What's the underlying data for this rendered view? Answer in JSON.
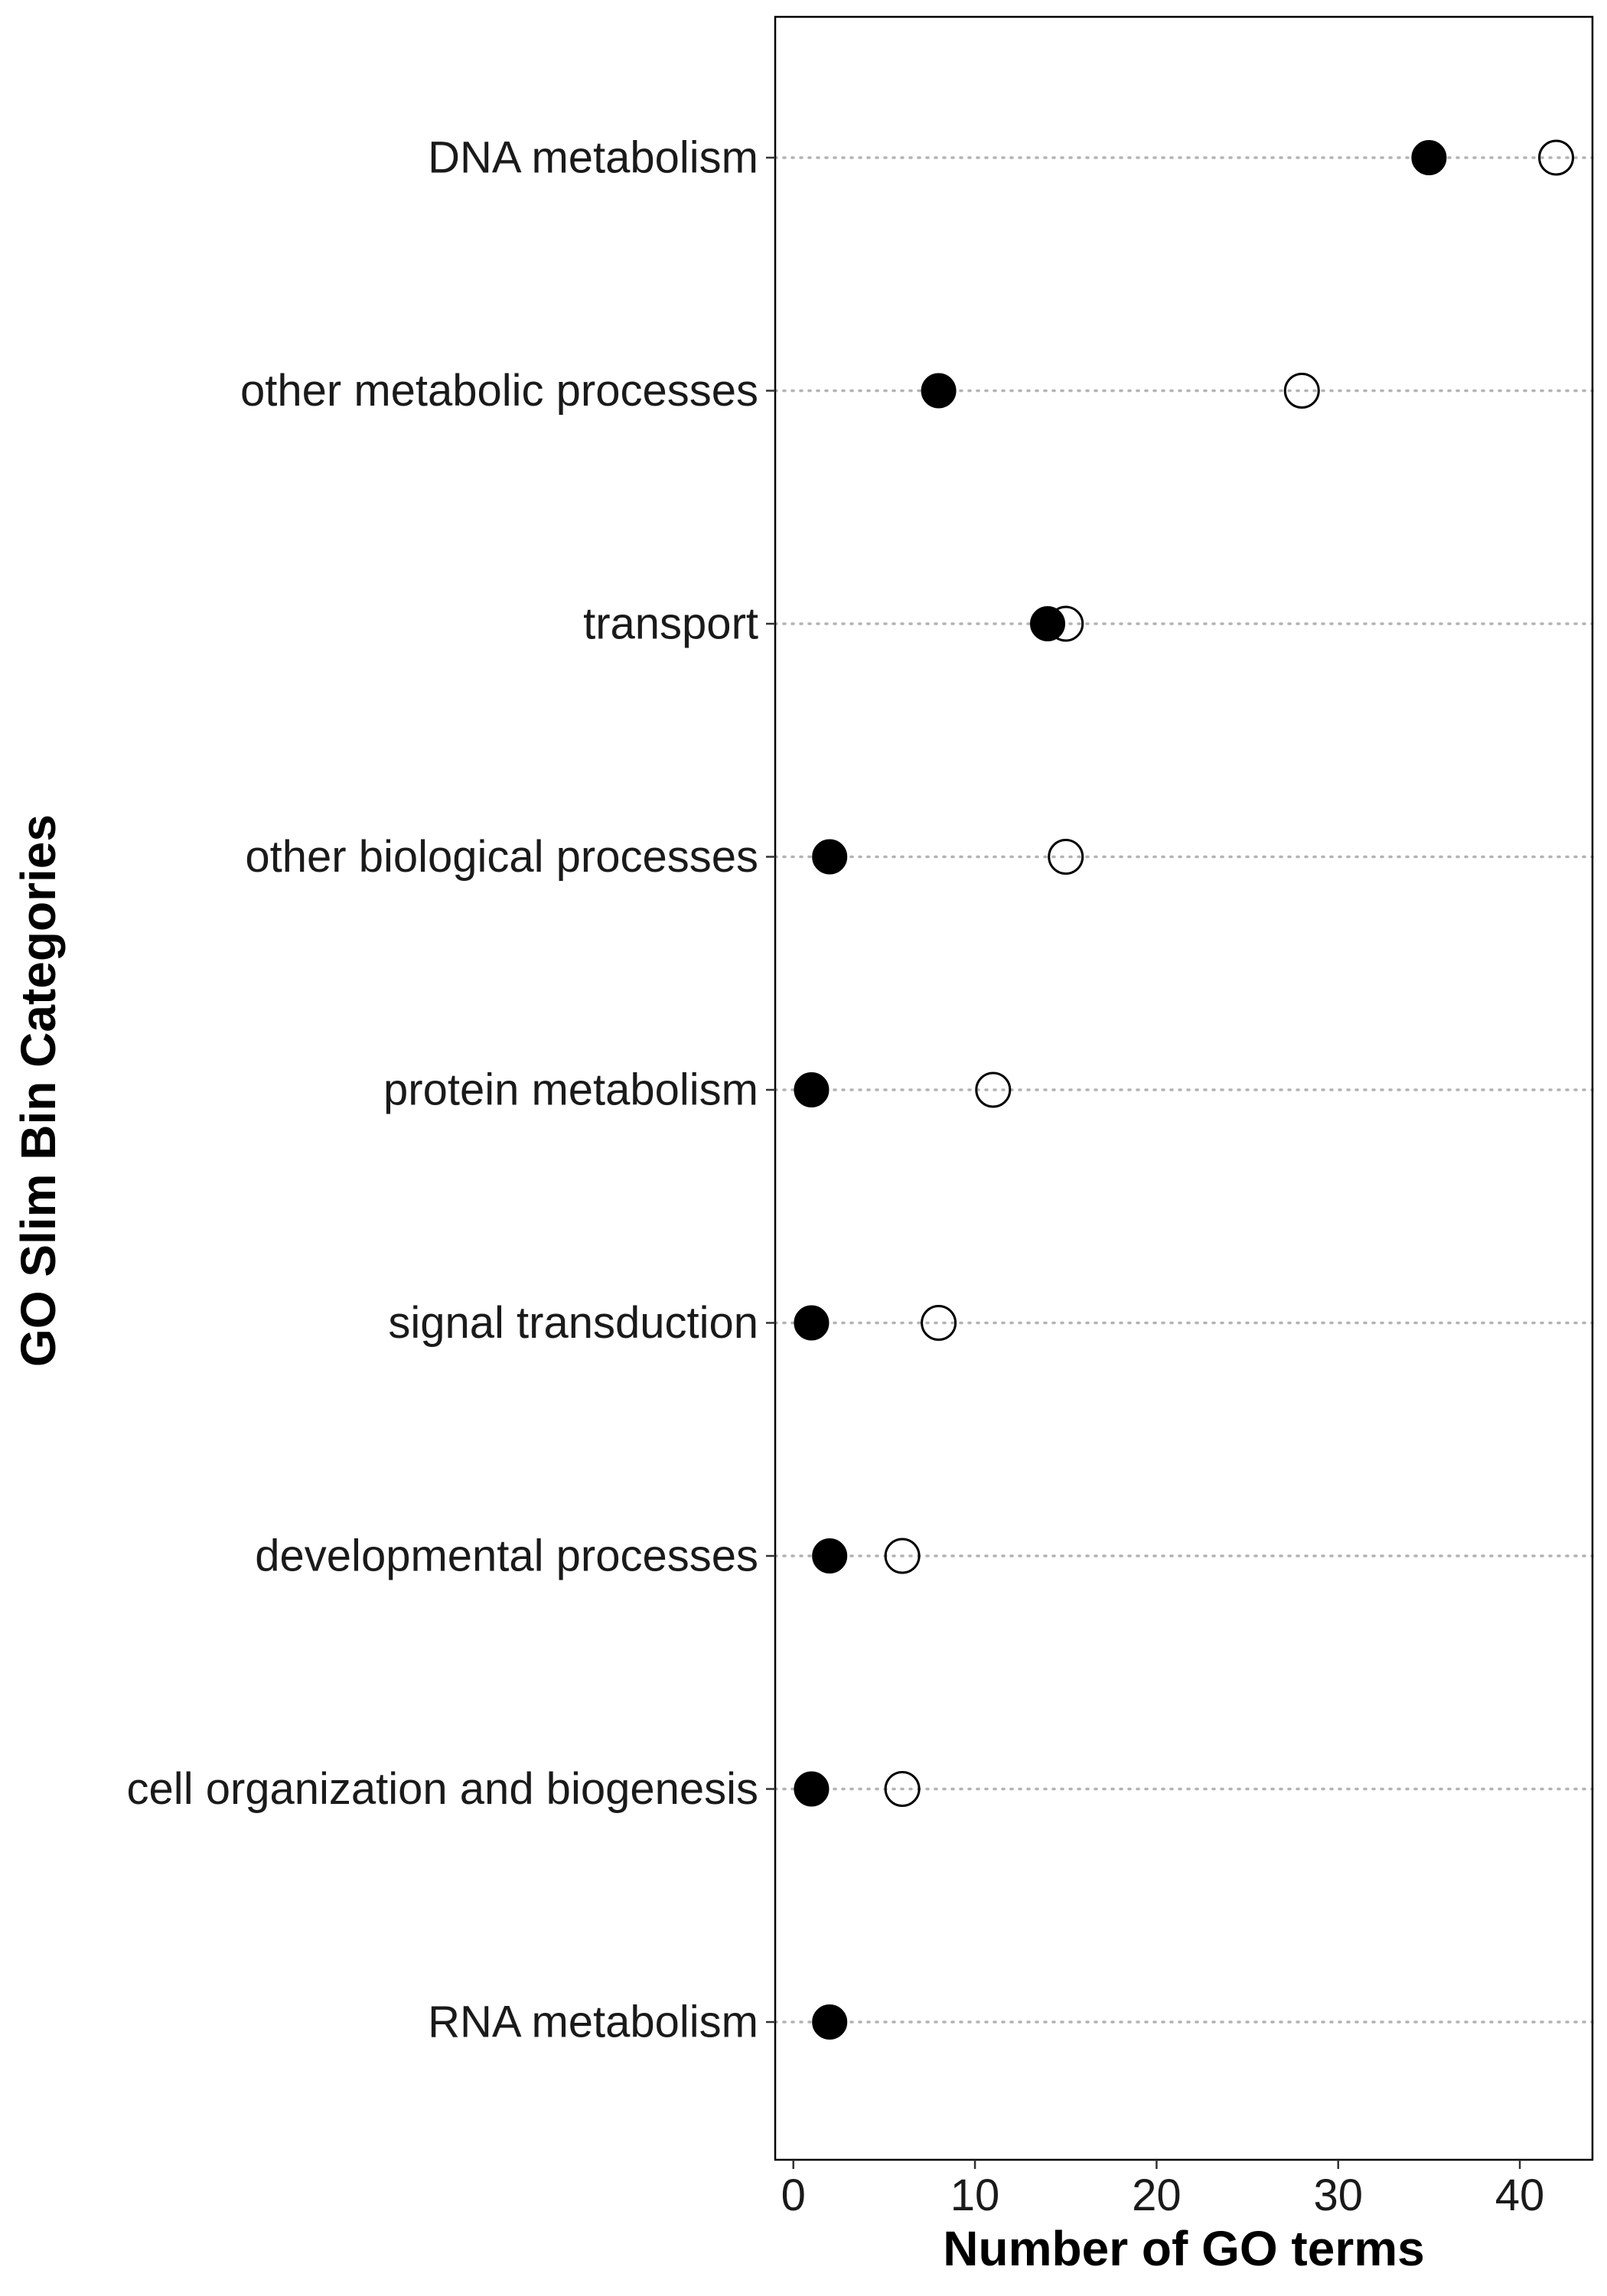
{
  "chart_data": {
    "type": "scatter",
    "xlabel": "Number of GO terms",
    "ylabel": "GO Slim Bin Categories",
    "xlim": [
      -1,
      44
    ],
    "x_ticks": [
      0,
      10,
      20,
      30,
      40
    ],
    "grid": "dotted horizontal lines per category",
    "legend": "none",
    "categories": [
      "DNA metabolism",
      "other metabolic processes",
      "transport",
      "other biological processes",
      "protein metabolism",
      "signal transduction",
      "developmental processes",
      "cell organization and biogenesis",
      "RNA metabolism"
    ],
    "series": [
      {
        "marker": "filled-circle",
        "color": "#000000",
        "values": [
          35,
          8,
          14,
          2,
          1,
          1,
          2,
          1,
          2
        ]
      },
      {
        "marker": "open-circle",
        "color": "#000000",
        "values": [
          42,
          28,
          15,
          15,
          11,
          8,
          6,
          6,
          null
        ]
      }
    ]
  }
}
